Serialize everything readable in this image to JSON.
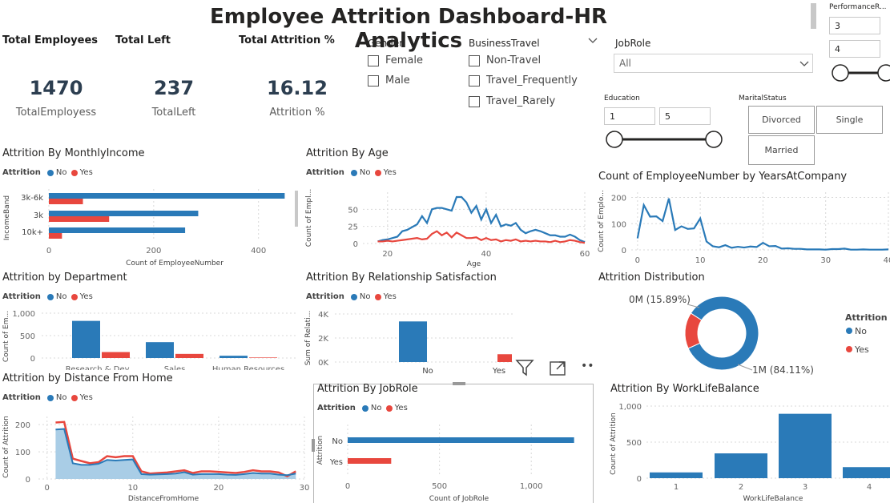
{
  "colors": {
    "no": "#2a7ab8",
    "yes": "#e8473e",
    "fill_no": "#a9cde6"
  },
  "title": "Employee Attrition Dashboard-HR Analytics",
  "kpis": [
    {
      "head": "Total Employees",
      "value": "1470",
      "label": "TotalEmployess"
    },
    {
      "head": "Total Left",
      "value": "237",
      "label": "TotalLeft"
    },
    {
      "head": "Total Attrition %",
      "value": "16.12",
      "label": "Attrition %"
    }
  ],
  "slicers": {
    "gender": {
      "title": "Gender",
      "options": [
        "Female",
        "Male"
      ]
    },
    "business_travel": {
      "title": "BusinessTravel",
      "options": [
        "Non-Travel",
        "Travel_Frequently",
        "Travel_Rarely"
      ]
    },
    "job_role": {
      "title": "JobRole",
      "value": "All"
    },
    "performance": {
      "title": "PerformanceR...",
      "min": "3",
      "max": "4"
    },
    "education": {
      "title": "Education",
      "min": "1",
      "max": "5"
    },
    "marital": {
      "title": "MaritalStatus",
      "options": [
        "Divorced",
        "Single",
        "Married"
      ]
    }
  },
  "legend": {
    "label": "Attrition",
    "no": "No",
    "yes": "Yes"
  },
  "visual_header": {
    "filter_icon": "filter-icon",
    "focus_icon": "focus-mode-icon",
    "more": "••"
  },
  "chart_data": [
    {
      "id": "income",
      "type": "bar",
      "orientation": "horizontal",
      "title": "Attrition By MonthlyIncome",
      "categories": [
        "3k-6k",
        "3k",
        "10k+"
      ],
      "series": [
        {
          "name": "No",
          "values": [
            450,
            285,
            260
          ]
        },
        {
          "name": "Yes",
          "values": [
            65,
            115,
            25
          ]
        }
      ],
      "xlabel": "Count of EmployeeNumber",
      "ylabel": "IncomeBand",
      "xlim": [
        0,
        480
      ],
      "xticks": [
        0,
        200,
        400
      ]
    },
    {
      "id": "age",
      "type": "line",
      "title": "Attrition By Age",
      "x": [
        18,
        19,
        20,
        21,
        22,
        23,
        24,
        25,
        26,
        27,
        28,
        29,
        30,
        31,
        32,
        33,
        34,
        35,
        36,
        37,
        38,
        39,
        40,
        41,
        42,
        43,
        44,
        45,
        46,
        47,
        48,
        49,
        50,
        51,
        52,
        53,
        54,
        55,
        56,
        57,
        58,
        59,
        60
      ],
      "series": [
        {
          "name": "No",
          "values": [
            3,
            5,
            6,
            8,
            10,
            18,
            20,
            24,
            28,
            40,
            30,
            50,
            52,
            52,
            50,
            48,
            68,
            68,
            60,
            45,
            55,
            35,
            50,
            30,
            42,
            25,
            28,
            26,
            30,
            20,
            15,
            18,
            20,
            18,
            15,
            12,
            12,
            10,
            10,
            13,
            10,
            5,
            2
          ]
        },
        {
          "name": "Yes",
          "values": [
            3,
            3,
            4,
            3,
            4,
            5,
            6,
            7,
            8,
            6,
            7,
            14,
            18,
            12,
            16,
            9,
            16,
            12,
            8,
            8,
            9,
            5,
            8,
            5,
            6,
            3,
            5,
            4,
            6,
            3,
            4,
            3,
            4,
            3,
            3,
            2,
            4,
            2,
            3,
            5,
            4,
            2,
            1
          ]
        }
      ],
      "xlabel": "Age",
      "ylabel": "Count of Empl...",
      "xlim": [
        15,
        60
      ],
      "ylim": [
        0,
        75
      ],
      "xticks": [
        20,
        40,
        60
      ],
      "yticks": [
        0,
        25,
        50
      ]
    },
    {
      "id": "years",
      "type": "line",
      "title": "Count of EmployeeNumber by YearsAtCompany",
      "x": [
        0,
        1,
        2,
        3,
        4,
        5,
        6,
        7,
        8,
        9,
        10,
        11,
        12,
        13,
        14,
        15,
        16,
        17,
        18,
        19,
        20,
        21,
        22,
        23,
        24,
        25,
        26,
        27,
        28,
        29,
        30,
        31,
        32,
        33,
        34,
        35,
        36,
        37,
        38,
        39,
        40
      ],
      "series": [
        {
          "name": "Count",
          "values": [
            44,
            171,
            127,
            128,
            110,
            196,
            76,
            90,
            80,
            82,
            120,
            32,
            14,
            10,
            18,
            8,
            12,
            9,
            13,
            11,
            27,
            14,
            15,
            5,
            6,
            4,
            4,
            2,
            2,
            2,
            1,
            3,
            3,
            5,
            1,
            1,
            2,
            1,
            1,
            1,
            2
          ]
        }
      ],
      "xlabel": "",
      "ylabel": "Count of Emplo...",
      "xlim": [
        -1,
        40
      ],
      "ylim": [
        0,
        220
      ],
      "xticks": [
        0,
        10,
        20,
        30,
        40
      ],
      "yticks": [
        0,
        100,
        200
      ]
    },
    {
      "id": "dept",
      "type": "bar",
      "title": "Attrition by Department",
      "categories": [
        "Research & Dev...",
        "Sales",
        "Human Resources"
      ],
      "series": [
        {
          "name": "No",
          "values": [
            828,
            354,
            51
          ]
        },
        {
          "name": "Yes",
          "values": [
            133,
            92,
            12
          ]
        }
      ],
      "ylabel": "Count of Em...",
      "ylim": [
        0,
        1000
      ],
      "yticks": [
        0,
        500,
        1000
      ],
      "ytick_labels": [
        "0",
        "500",
        "1,000"
      ]
    },
    {
      "id": "relsat",
      "type": "bar",
      "title": "Attrition By Relationship Satisfaction",
      "categories": [
        "No",
        "Yes"
      ],
      "series": [
        {
          "name": "No",
          "values": [
            3380,
            0
          ]
        },
        {
          "name": "Yes",
          "values": [
            0,
            650
          ]
        }
      ],
      "ylabel": "Sum of Relati...",
      "ylim": [
        0,
        4000
      ],
      "yticks": [
        0,
        2000,
        4000
      ],
      "ytick_labels": [
        "0K",
        "2K",
        "4K"
      ]
    },
    {
      "id": "dist",
      "type": "pie",
      "title": "Attrition Distribution",
      "legend_title": "Attrition",
      "slices": [
        {
          "name": "No",
          "value": 84.11,
          "label": "1M (84.11%)"
        },
        {
          "name": "Yes",
          "value": 15.89,
          "label": "0M (15.89%)"
        }
      ]
    },
    {
      "id": "distance",
      "type": "area",
      "title": "Attrition by Distance From Home",
      "x": [
        1,
        2,
        3,
        4,
        5,
        6,
        7,
        8,
        9,
        10,
        11,
        12,
        13,
        14,
        15,
        16,
        17,
        18,
        19,
        20,
        21,
        22,
        23,
        24,
        25,
        26,
        27,
        28,
        29
      ],
      "series": [
        {
          "name": "No",
          "values": [
            182,
            184,
            58,
            52,
            52,
            56,
            70,
            68,
            70,
            72,
            18,
            16,
            17,
            18,
            20,
            25,
            16,
            18,
            18,
            18,
            16,
            15,
            18,
            22,
            20,
            20,
            16,
            14,
            20
          ]
        },
        {
          "name": "Yes",
          "values": [
            208,
            210,
            75,
            66,
            58,
            62,
            84,
            80,
            84,
            84,
            28,
            20,
            22,
            24,
            28,
            32,
            22,
            28,
            28,
            26,
            24,
            22,
            26,
            32,
            28,
            28,
            24,
            10,
            28
          ]
        }
      ],
      "xlabel": "DistanceFromHome",
      "ylabel": "Count of Attrition",
      "xlim": [
        -1,
        30
      ],
      "ylim": [
        0,
        230
      ],
      "xticks": [
        0,
        10,
        20,
        30
      ],
      "yticks": [
        0,
        100,
        200
      ]
    },
    {
      "id": "jobrole",
      "type": "bar",
      "orientation": "horizontal",
      "title": "Attrition By JobRole",
      "categories": [
        "No",
        "Yes"
      ],
      "series": [
        {
          "name": "No",
          "values": [
            1233,
            0
          ]
        },
        {
          "name": "Yes",
          "values": [
            0,
            237
          ]
        }
      ],
      "xlabel": "Count of JobRole",
      "ylabel": "Attrition",
      "xlim": [
        0,
        1300
      ],
      "xticks": [
        0,
        500,
        1000
      ],
      "xtick_labels": [
        "0",
        "500",
        "1,000"
      ]
    },
    {
      "id": "wlb",
      "type": "bar",
      "title": "Attrition By WorkLifeBalance",
      "categories": [
        "1",
        "2",
        "3",
        "4"
      ],
      "series": [
        {
          "name": "Count of Attrition",
          "values": [
            80,
            344,
            893,
            153
          ]
        }
      ],
      "xlabel": "WorkLifeBalance",
      "ylabel": "Count of Attrition",
      "ylim": [
        0,
        1000
      ],
      "yticks": [
        0,
        500,
        1000
      ],
      "ytick_labels": [
        "0",
        "500",
        "1,000"
      ]
    }
  ]
}
